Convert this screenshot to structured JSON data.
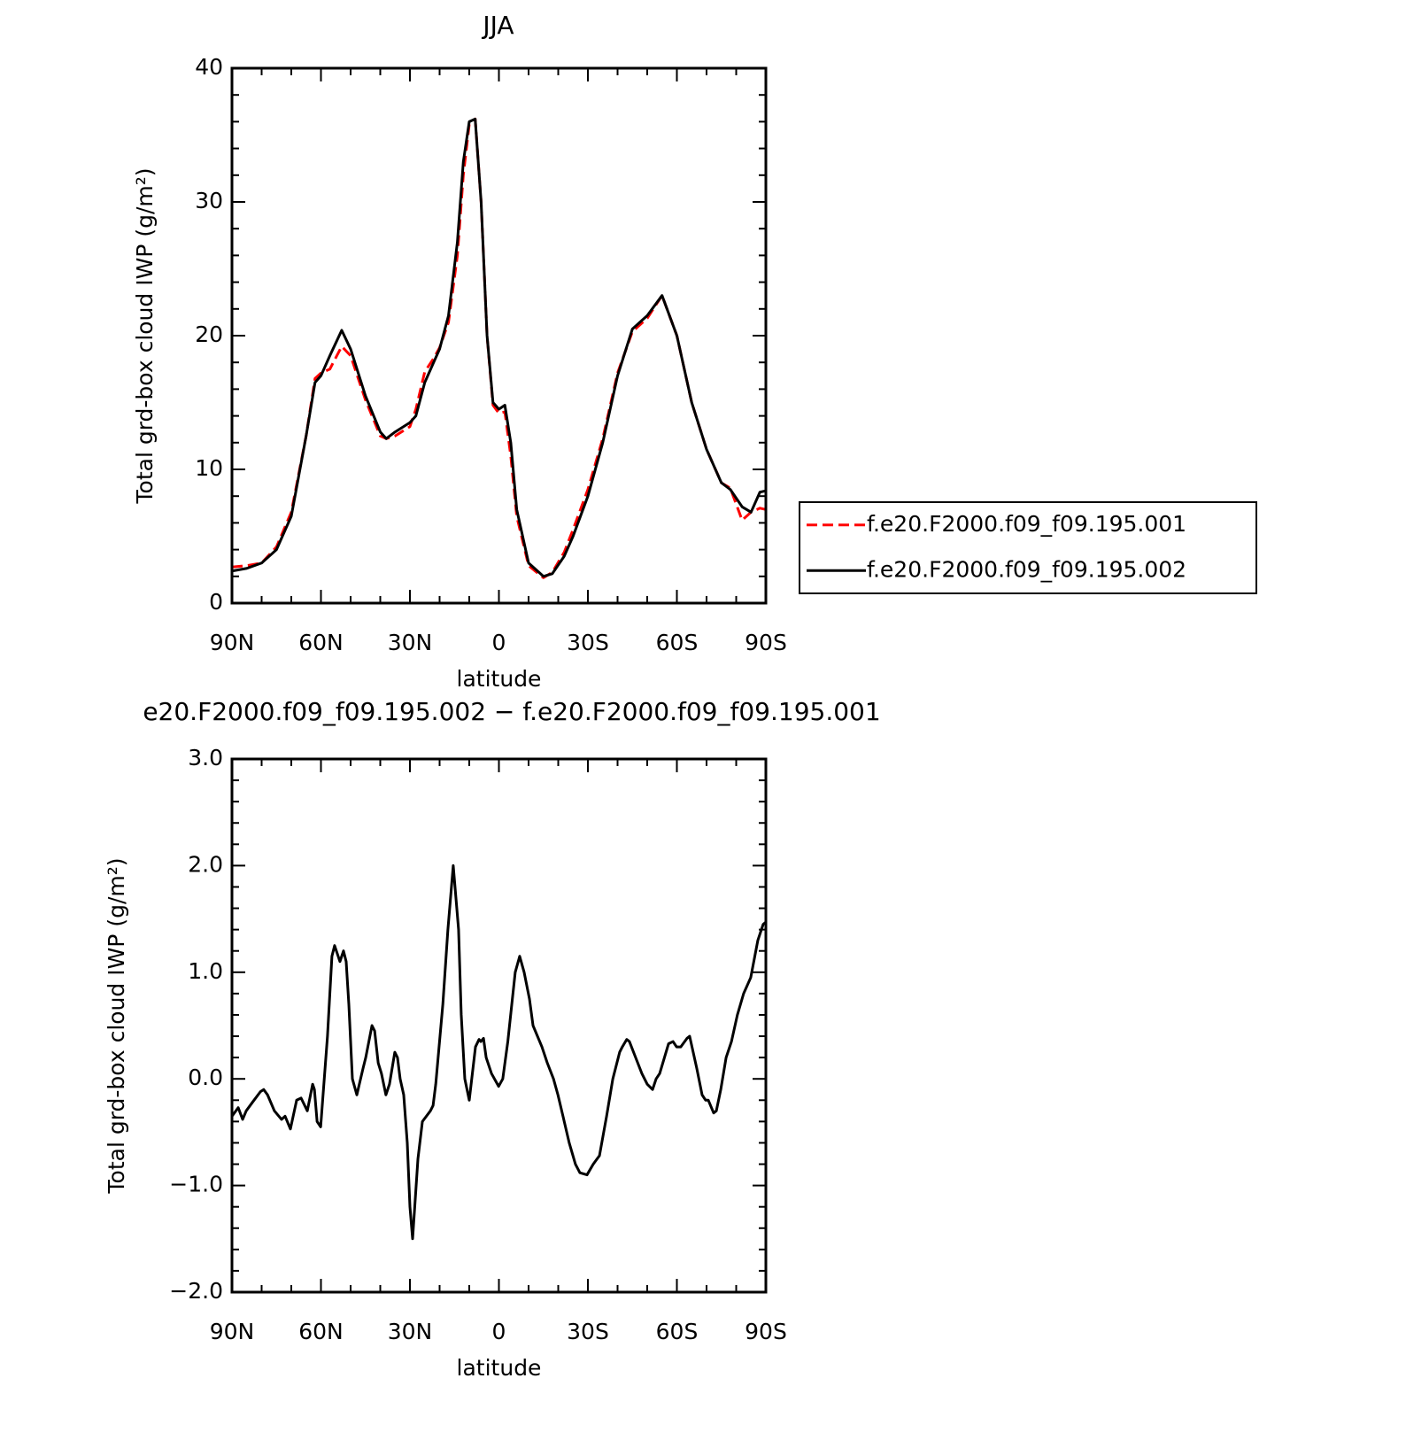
{
  "chart_data": [
    {
      "type": "line",
      "title": "JJA",
      "xlabel": "latitude",
      "ylabel": "Total grd-box cloud IWP (g/m²)",
      "x": [
        90,
        85,
        80,
        75,
        70,
        65,
        62,
        60,
        57,
        53,
        50,
        45,
        40,
        38,
        35,
        30,
        28,
        25,
        22,
        20,
        17,
        14,
        12,
        10,
        8,
        6,
        4,
        2,
        0,
        -2,
        -4,
        -6,
        -10,
        -15,
        -18,
        -22,
        -25,
        -30,
        -35,
        -40,
        -45,
        -50,
        -55,
        -60,
        -65,
        -70,
        -75,
        -78,
        -82,
        -85,
        -88,
        -90
      ],
      "series": [
        {
          "name": "f.e20.F2000.f09_f09.195.001",
          "color": "#ff0000",
          "style": "dashed",
          "values": [
            2.7,
            2.8,
            3.0,
            4.2,
            6.8,
            12.5,
            16.8,
            17.2,
            17.5,
            19.2,
            18.5,
            15.2,
            12.5,
            12.3,
            12.5,
            13.2,
            14.5,
            17.3,
            18.3,
            19.1,
            21,
            26,
            32,
            35.8,
            36.2,
            30,
            20,
            14.8,
            14.2,
            14.3,
            11,
            6.5,
            2.8,
            1.9,
            2.3,
            3.8,
            5.5,
            8.5,
            12.3,
            17.2,
            20.3,
            21.3,
            23,
            20,
            15,
            11.5,
            9,
            8.6,
            6.2,
            6.8,
            7.1,
            7.0
          ]
        },
        {
          "name": "f.e20.F2000.f09_f09.195.002",
          "color": "#000000",
          "style": "solid",
          "values": [
            2.4,
            2.6,
            3.0,
            4.0,
            6.5,
            12.5,
            16.5,
            17.0,
            18.5,
            20.4,
            19,
            15.5,
            12.8,
            12.3,
            12.8,
            13.5,
            14.0,
            16.5,
            18.0,
            19.0,
            21.5,
            27,
            33,
            36,
            36.2,
            30,
            20,
            15.0,
            14.5,
            14.8,
            12,
            7,
            3,
            2.0,
            2.2,
            3.5,
            5,
            8,
            12,
            17,
            20.5,
            21.5,
            23,
            20,
            15,
            11.5,
            9,
            8.5,
            7.2,
            6.8,
            8.3,
            8.4
          ]
        }
      ],
      "xlim": [
        90,
        -90
      ],
      "xticks": [
        {
          "value": 90,
          "label": "90N"
        },
        {
          "value": 60,
          "label": "60N"
        },
        {
          "value": 30,
          "label": "30N"
        },
        0,
        {
          "value": -30,
          "label": "30S"
        },
        {
          "value": -60,
          "label": "60S"
        },
        {
          "value": -90,
          "label": "90S"
        }
      ],
      "ylim": [
        0,
        40
      ],
      "yticks": [
        0,
        10,
        20,
        30,
        40
      ],
      "legend": "right"
    },
    {
      "type": "line",
      "title": "e20.F2000.f09_f09.195.002 − f.e20.F2000.f09_f09.195.001",
      "xlabel": "latitude",
      "ylabel": "Total grd-box cloud IWP (g/m²)",
      "x": [
        90,
        87.9,
        86.4,
        85.2,
        83.1,
        80.4,
        79.3,
        78,
        75.7,
        73.3,
        72.1,
        70.3,
        68.2,
        66.7,
        64.6,
        62.8,
        62.2,
        61.3,
        60.1,
        57.8,
        56.3,
        55.4,
        53.6,
        52.4,
        51.5,
        50.6,
        49.4,
        47.9,
        45.8,
        44.9,
        42.8,
        41.9,
        40.7,
        39.6,
        38.1,
        36.9,
        35.1,
        34.2,
        33.3,
        32.1,
        30.9,
        30,
        29.1,
        27.3,
        25.8,
        23.1,
        22.2,
        21.3,
        18.9,
        17.2,
        15.4,
        13.6,
        12.7,
        11.5,
        10,
        7.9,
        6.7,
        6.1,
        5.2,
        4.3,
        2.5,
        0.1,
        -1.3,
        -3,
        -5.5,
        -7,
        -8.5,
        -10.3,
        -11.5,
        -14.5,
        -16.3,
        -18.4,
        -19.9,
        -21.6,
        -23.7,
        -25.8,
        -27.3,
        -29.7,
        -31.8,
        -33.9,
        -36.3,
        -38.4,
        -40.7,
        -41.6,
        -43.1,
        -44,
        -46.1,
        -48.2,
        -50,
        -51.8,
        -53,
        -54.2,
        -57.2,
        -58.7,
        -59.9,
        -61.3,
        -63.4,
        -64.3,
        -66.7,
        -68.5,
        -69.7,
        -70.6,
        -72.4,
        -73.3,
        -74.8,
        -76.6,
        -78.4,
        -80.4,
        -82.5,
        -84.9,
        -87.3,
        -89.1,
        -90
      ],
      "series": [
        {
          "color": "#000000",
          "style": "solid",
          "values": [
            -0.35,
            -0.27,
            -0.38,
            -0.3,
            -0.22,
            -0.12,
            -0.1,
            -0.15,
            -0.3,
            -0.38,
            -0.35,
            -0.47,
            -0.2,
            -0.18,
            -0.3,
            -0.05,
            -0.1,
            -0.4,
            -0.45,
            0.4,
            1.15,
            1.25,
            1.1,
            1.2,
            1.1,
            0.7,
            0,
            -0.15,
            0.1,
            0.2,
            0.5,
            0.45,
            0.15,
            0.05,
            -0.15,
            -0.05,
            0.25,
            0.2,
            0,
            -0.15,
            -0.6,
            -1.2,
            -1.5,
            -0.75,
            -0.4,
            -0.3,
            -0.25,
            -0.05,
            0.7,
            1.4,
            2,
            1.4,
            0.6,
            0,
            -0.2,
            0.3,
            0.37,
            0.35,
            0.38,
            0.2,
            0.05,
            -0.07,
            0,
            0.35,
            1.0,
            1.15,
            1.0,
            0.75,
            0.5,
            0.3,
            0.15,
            0,
            -0.15,
            -0.35,
            -0.6,
            -0.8,
            -0.88,
            -0.9,
            -0.8,
            -0.72,
            -0.35,
            0,
            0.25,
            0.3,
            0.37,
            0.35,
            0.2,
            0.05,
            -0.05,
            -0.1,
            0,
            0.05,
            0.33,
            0.35,
            0.3,
            0.3,
            0.38,
            0.4,
            0.1,
            -0.15,
            -0.2,
            -0.2,
            -0.32,
            -0.3,
            -0.1,
            0.2,
            0.35,
            0.6,
            0.8,
            0.95,
            1.3,
            1.45,
            1.47
          ]
        }
      ],
      "xlim": [
        90,
        -90
      ],
      "xticks": [
        {
          "value": 90,
          "label": "90N"
        },
        {
          "value": 60,
          "label": "60N"
        },
        {
          "value": 30,
          "label": "30N"
        },
        0,
        {
          "value": -30,
          "label": "30S"
        },
        {
          "value": -60,
          "label": "60S"
        },
        {
          "value": -90,
          "label": "90S"
        }
      ],
      "ylim": [
        -2,
        3
      ],
      "yticks": [
        {
          "value": -2,
          "label": "−2.0"
        },
        {
          "value": -1,
          "label": "−1.0"
        },
        {
          "value": 0,
          "label": "0.0"
        },
        {
          "value": 1,
          "label": "1.0"
        },
        {
          "value": 2,
          "label": "2.0"
        },
        {
          "value": 3,
          "label": "3.0"
        }
      ]
    }
  ]
}
